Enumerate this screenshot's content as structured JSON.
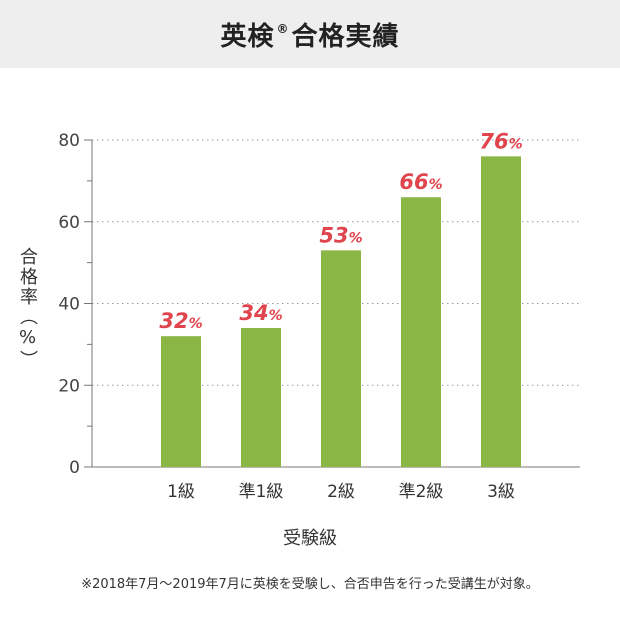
{
  "header": {
    "title_main": "英検",
    "title_reg": "®",
    "title_rest": "合格実績"
  },
  "chart_data": {
    "type": "bar",
    "categories": [
      "1級",
      "準1級",
      "2級",
      "準2級",
      "3級"
    ],
    "values": [
      32,
      34,
      53,
      66,
      76
    ],
    "value_labels": [
      "32",
      "34",
      "53",
      "66",
      "76"
    ],
    "value_suffix": "%",
    "ylabel": "合格率（%）",
    "xlabel": "受験級",
    "ylim": [
      0,
      80
    ],
    "yticks": [
      0,
      20,
      40,
      60,
      80
    ],
    "grid": true,
    "bar_color": "#8ab645",
    "label_color": "#e0444c"
  },
  "footnote": "※2018年7月～2019年7月に英検を受験し、合否申告を行った受講生が対象。"
}
